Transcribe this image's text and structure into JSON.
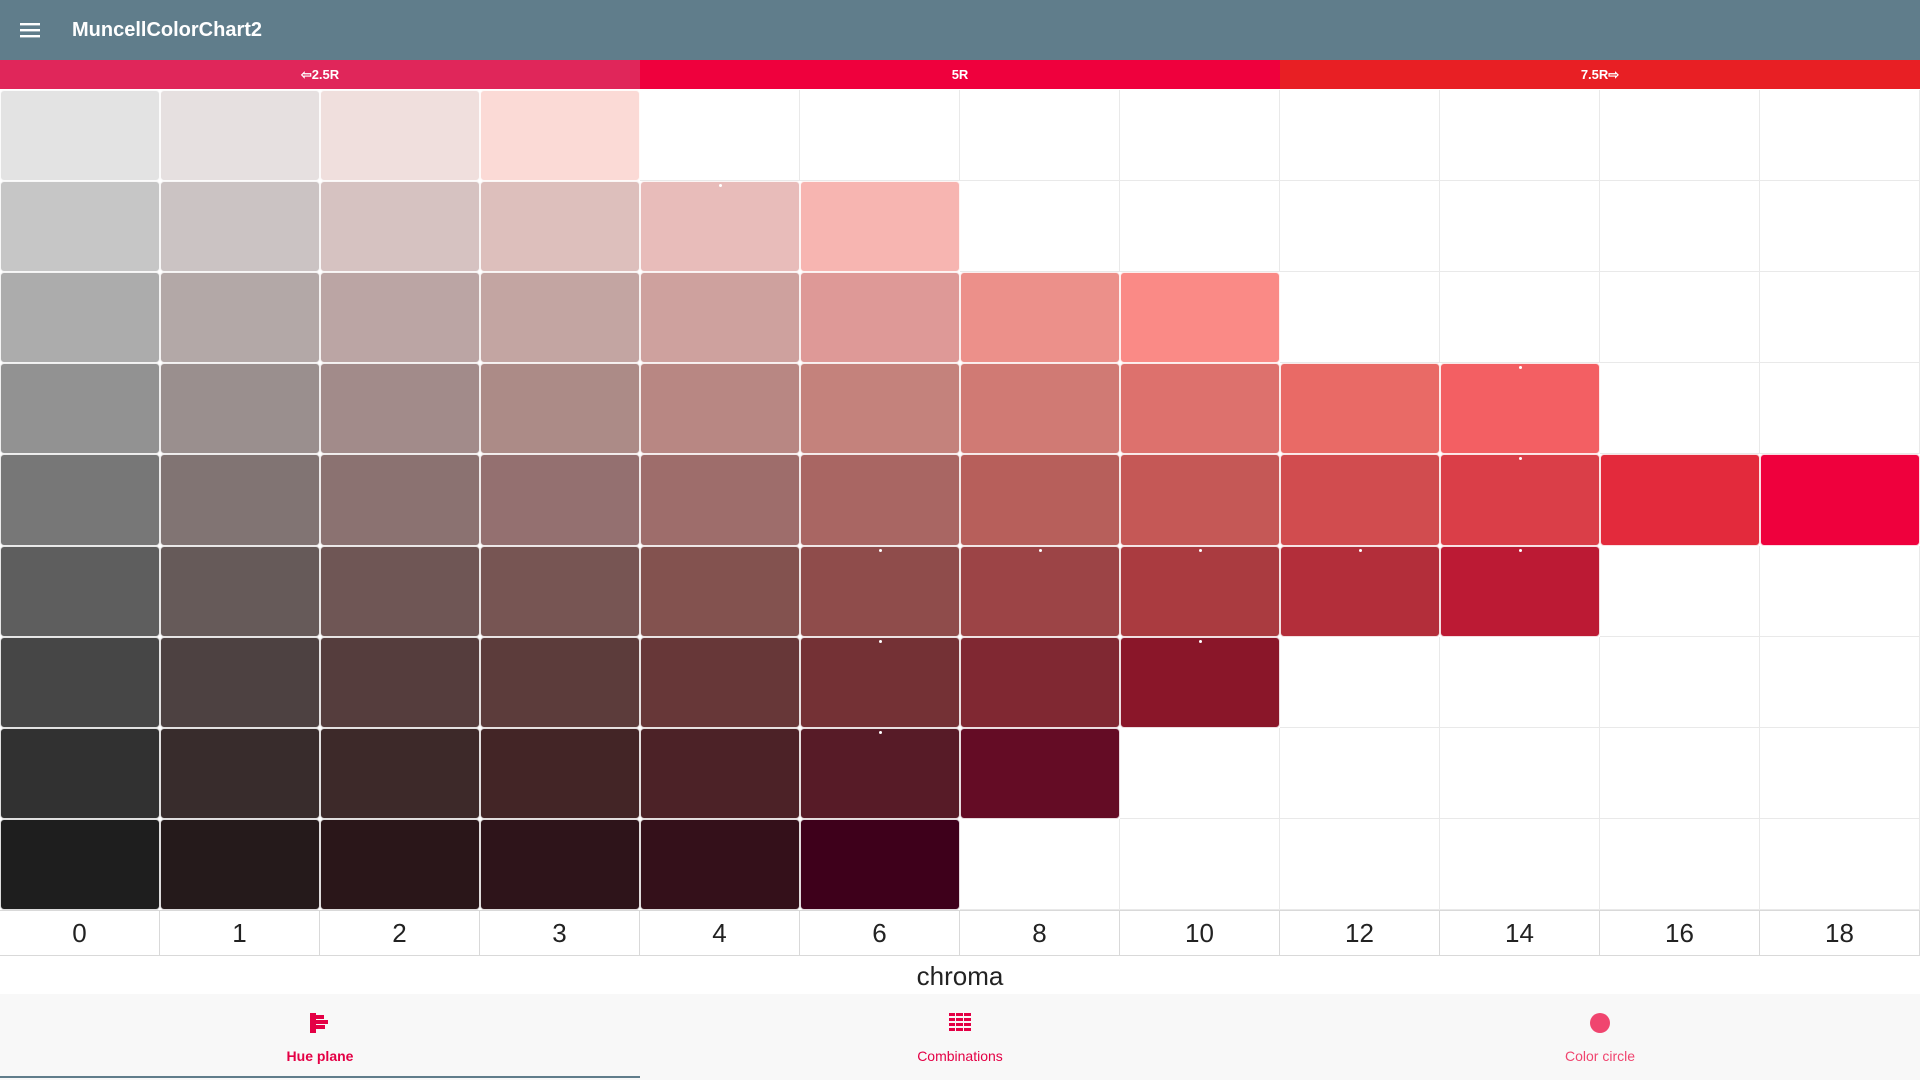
{
  "app_bar": {
    "title": "MuncellColorChart2",
    "menu_icon": "hamburger-menu-icon"
  },
  "hue_tabs": [
    {
      "label": "⇦2.5R",
      "color": "#e0265a"
    },
    {
      "label": "5R",
      "color": "#ef003d"
    },
    {
      "label": "7.5R⇨",
      "color": "#e81f24"
    }
  ],
  "chroma_labels": [
    "0",
    "1",
    "2",
    "3",
    "4",
    "6",
    "8",
    "10",
    "12",
    "14",
    "16",
    "18"
  ],
  "axis_title": "chroma",
  "grid": {
    "rows": [
      {
        "cells": [
          "#e3e3e3",
          "#e6e0e0",
          "#f0dfdd",
          "#fbdad6"
        ]
      },
      {
        "cells": [
          "#c6c6c6",
          "#cbc3c3",
          "#d6c2c1",
          "#ddbfbc",
          "#e8bcba",
          "#f7b5b1"
        ],
        "markers": [
          4
        ]
      },
      {
        "cells": [
          "#acacac",
          "#b3a8a7",
          "#bba5a4",
          "#c3a5a2",
          "#cea19e",
          "#de9997",
          "#ec908a",
          "#fa8a86"
        ]
      },
      {
        "cells": [
          "#929292",
          "#9a8f8e",
          "#a28b8a",
          "#ac8b87",
          "#b88783",
          "#c4827c",
          "#d07a74",
          "#dd716d",
          "#e96a66",
          "#f35f63"
        ],
        "markers": [
          9
        ]
      },
      {
        "cells": [
          "#777777",
          "#817473",
          "#8b7271",
          "#947070",
          "#9e6d6b",
          "#a96663",
          "#b75f5b",
          "#c55856",
          "#d14c4f",
          "#da3e48",
          "#e32a3c",
          "#ef003d"
        ],
        "markers": [
          9
        ]
      },
      {
        "cells": [
          "#5e5e5e",
          "#665a59",
          "#6f5655",
          "#775553",
          "#83524f",
          "#8f4c4b",
          "#9c4446",
          "#aa3b40",
          "#b32e3a",
          "#bc1a34"
        ],
        "markers": [
          5,
          6,
          7,
          8,
          9
        ]
      },
      {
        "cells": [
          "#464646",
          "#4d4141",
          "#553d3d",
          "#5c3c3b",
          "#673738",
          "#743135",
          "#802832",
          "#8a1629"
        ],
        "markers": [
          5,
          7
        ]
      },
      {
        "cells": [
          "#313131",
          "#382c2c",
          "#3d2929",
          "#432526",
          "#4c2227",
          "#571b27",
          "#640c25"
        ],
        "markers": [
          5
        ]
      },
      {
        "cells": [
          "#1e1e1e",
          "#251a1b",
          "#2a1619",
          "#2e141a",
          "#34101a",
          "#3e001b"
        ]
      }
    ]
  },
  "bottom_nav": [
    {
      "label": "Hue plane",
      "icon": "hue-plane-icon",
      "color": "#e40045",
      "active": true
    },
    {
      "label": "Combinations",
      "icon": "combinations-icon",
      "color": "#e40045",
      "active": false
    },
    {
      "label": "Color circle",
      "icon": "color-circle-icon",
      "color": "#f0456f",
      "active": false
    }
  ]
}
